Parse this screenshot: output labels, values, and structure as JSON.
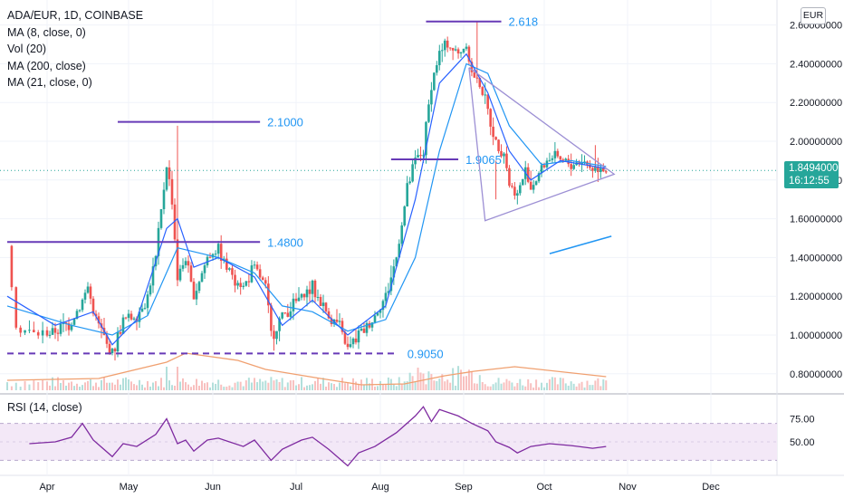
{
  "legend": {
    "symbol": "ADA/EUR, 1D, COINBASE",
    "ma8": "MA (8, close, 0)",
    "vol": "Vol (20)",
    "ma200": "MA (200, close)",
    "ma21": "MA (21, close, 0)"
  },
  "currency_label": "EUR",
  "last_price": "1.84940000",
  "countdown": "16:12:55",
  "rsi_legend": "RSI (14, close)",
  "colors": {
    "up": "#26a69a",
    "down": "#ef5350",
    "ma_fast": "#2962ff",
    "ma_slow": "#2196f3",
    "volume_ma": "#f0a070",
    "rsi_line": "#7e2aa0",
    "rsi_band": "#f3e8f7",
    "level_line": "#673ab7",
    "level_text": "#2196f3",
    "triangle": "#9c8fd4",
    "badge": "#26a69a"
  },
  "chart_data": [
    {
      "type": "candlestick",
      "x_tick_labels": [
        "Apr",
        "May",
        "Jun",
        "Jul",
        "Aug",
        "Sep",
        "Oct",
        "Nov",
        "Dec"
      ],
      "y_tick_labels": [
        "2.60000000",
        "2.40000000",
        "2.20000000",
        "2.00000000",
        "1.80000000",
        "1.60000000",
        "1.40000000",
        "1.20000000",
        "1.00000000",
        "0.80000000"
      ],
      "ylim": [
        0.75,
        2.65
      ],
      "last_price": 1.8494,
      "levels": [
        {
          "label": "2.618",
          "value": 2.618
        },
        {
          "label": "2.1000",
          "value": 2.1
        },
        {
          "label": "1.9065",
          "value": 1.9065
        },
        {
          "label": "1.4800",
          "value": 1.48
        },
        {
          "label": "0.9050",
          "value": 0.905
        }
      ],
      "price_path": [
        [
          "2021-03-23",
          1.46
        ],
        [
          "2021-03-25",
          1.05
        ],
        [
          "2021-03-29",
          1.0
        ],
        [
          "2021-04-04",
          1.02
        ],
        [
          "2021-04-10",
          1.07
        ],
        [
          "2021-04-14",
          1.18
        ],
        [
          "2021-04-16",
          1.25
        ],
        [
          "2021-04-18",
          1.12
        ],
        [
          "2021-04-23",
          0.95
        ],
        [
          "2021-04-25",
          0.9
        ],
        [
          "2021-04-29",
          1.08
        ],
        [
          "2021-05-04",
          1.1
        ],
        [
          "2021-05-08",
          1.2
        ],
        [
          "2021-05-11",
          1.4
        ],
        [
          "2021-05-15",
          1.88
        ],
        [
          "2021-05-17",
          1.7
        ],
        [
          "2021-05-19",
          1.3
        ],
        [
          "2021-05-22",
          1.4
        ],
        [
          "2021-05-25",
          1.2
        ],
        [
          "2021-05-30",
          1.4
        ],
        [
          "2021-06-03",
          1.45
        ],
        [
          "2021-06-06",
          1.35
        ],
        [
          "2021-06-12",
          1.25
        ],
        [
          "2021-06-16",
          1.35
        ],
        [
          "2021-06-20",
          1.25
        ],
        [
          "2021-06-22",
          1.0
        ],
        [
          "2021-06-26",
          1.1
        ],
        [
          "2021-07-03",
          1.2
        ],
        [
          "2021-07-07",
          1.24
        ],
        [
          "2021-07-13",
          1.1
        ],
        [
          "2021-07-17",
          1.05
        ],
        [
          "2021-07-20",
          0.92
        ],
        [
          "2021-07-24",
          1.0
        ],
        [
          "2021-07-30",
          1.1
        ],
        [
          "2021-08-03",
          1.2
        ],
        [
          "2021-08-07",
          1.4
        ],
        [
          "2021-08-11",
          1.75
        ],
        [
          "2021-08-14",
          1.9
        ],
        [
          "2021-08-17",
          1.95
        ],
        [
          "2021-08-20",
          2.3
        ],
        [
          "2021-08-23",
          2.45
        ],
        [
          "2021-08-26",
          2.5
        ],
        [
          "2021-08-30",
          2.45
        ],
        [
          "2021-09-02",
          2.5
        ],
        [
          "2021-09-04",
          2.35
        ],
        [
          "2021-09-07",
          2.3
        ],
        [
          "2021-09-10",
          2.15
        ],
        [
          "2021-09-13",
          2.0
        ],
        [
          "2021-09-16",
          1.95
        ],
        [
          "2021-09-18",
          1.78
        ],
        [
          "2021-09-21",
          1.72
        ],
        [
          "2021-09-24",
          1.85
        ],
        [
          "2021-09-26",
          1.76
        ],
        [
          "2021-09-30",
          1.86
        ],
        [
          "2021-10-03",
          1.92
        ],
        [
          "2021-10-07",
          1.9
        ],
        [
          "2021-10-11",
          1.88
        ],
        [
          "2021-10-15",
          1.9
        ],
        [
          "2021-10-19",
          1.86
        ],
        [
          "2021-10-22",
          1.88
        ],
        [
          "2021-10-24",
          1.85
        ]
      ],
      "ma_fast_path": [
        [
          "2021-03-23",
          1.2
        ],
        [
          "2021-04-04",
          1.05
        ],
        [
          "2021-04-18",
          1.12
        ],
        [
          "2021-04-25",
          0.95
        ],
        [
          "2021-05-04",
          1.08
        ],
        [
          "2021-05-15",
          1.55
        ],
        [
          "2021-05-19",
          1.6
        ],
        [
          "2021-05-25",
          1.35
        ],
        [
          "2021-06-03",
          1.4
        ],
        [
          "2021-06-16",
          1.3
        ],
        [
          "2021-06-26",
          1.05
        ],
        [
          "2021-07-07",
          1.18
        ],
        [
          "2021-07-20",
          1.0
        ],
        [
          "2021-08-03",
          1.15
        ],
        [
          "2021-08-14",
          1.7
        ],
        [
          "2021-08-23",
          2.3
        ],
        [
          "2021-09-02",
          2.45
        ],
        [
          "2021-09-10",
          2.25
        ],
        [
          "2021-09-18",
          1.95
        ],
        [
          "2021-09-26",
          1.8
        ],
        [
          "2021-10-07",
          1.9
        ],
        [
          "2021-10-24",
          1.86
        ]
      ],
      "ma_slow_path": [
        [
          "2021-03-23",
          1.15
        ],
        [
          "2021-04-10",
          1.05
        ],
        [
          "2021-04-25",
          1.0
        ],
        [
          "2021-05-08",
          1.1
        ],
        [
          "2021-05-19",
          1.45
        ],
        [
          "2021-06-03",
          1.4
        ],
        [
          "2021-06-16",
          1.32
        ],
        [
          "2021-06-26",
          1.15
        ],
        [
          "2021-07-07",
          1.12
        ],
        [
          "2021-07-20",
          1.02
        ],
        [
          "2021-08-03",
          1.08
        ],
        [
          "2021-08-14",
          1.4
        ],
        [
          "2021-08-23",
          1.95
        ],
        [
          "2021-09-02",
          2.4
        ],
        [
          "2021-09-10",
          2.35
        ],
        [
          "2021-09-18",
          2.08
        ],
        [
          "2021-09-30",
          1.88
        ],
        [
          "2021-10-11",
          1.9
        ],
        [
          "2021-10-24",
          1.87
        ]
      ]
    },
    {
      "type": "area",
      "name": "RSI (14, close)",
      "y_tick_labels": [
        "75.00",
        "50.00"
      ],
      "ylim": [
        20,
        90
      ],
      "band": [
        30,
        70
      ],
      "rsi_path": [
        [
          "2021-03-28",
          48
        ],
        [
          "2021-04-04",
          50
        ],
        [
          "2021-04-10",
          55
        ],
        [
          "2021-04-14",
          70
        ],
        [
          "2021-04-18",
          52
        ],
        [
          "2021-04-25",
          34
        ],
        [
          "2021-04-29",
          48
        ],
        [
          "2021-05-04",
          45
        ],
        [
          "2021-05-11",
          58
        ],
        [
          "2021-05-15",
          75
        ],
        [
          "2021-05-19",
          48
        ],
        [
          "2021-05-22",
          52
        ],
        [
          "2021-05-25",
          40
        ],
        [
          "2021-05-30",
          52
        ],
        [
          "2021-06-03",
          54
        ],
        [
          "2021-06-12",
          45
        ],
        [
          "2021-06-16",
          52
        ],
        [
          "2021-06-22",
          30
        ],
        [
          "2021-06-26",
          42
        ],
        [
          "2021-07-03",
          52
        ],
        [
          "2021-07-07",
          55
        ],
        [
          "2021-07-13",
          42
        ],
        [
          "2021-07-20",
          24
        ],
        [
          "2021-07-24",
          38
        ],
        [
          "2021-07-30",
          45
        ],
        [
          "2021-08-07",
          60
        ],
        [
          "2021-08-14",
          78
        ],
        [
          "2021-08-17",
          88
        ],
        [
          "2021-08-20",
          72
        ],
        [
          "2021-08-23",
          85
        ],
        [
          "2021-08-30",
          78
        ],
        [
          "2021-09-04",
          70
        ],
        [
          "2021-09-10",
          62
        ],
        [
          "2021-09-13",
          50
        ],
        [
          "2021-09-18",
          44
        ],
        [
          "2021-09-21",
          38
        ],
        [
          "2021-09-26",
          45
        ],
        [
          "2021-10-03",
          48
        ],
        [
          "2021-10-11",
          46
        ],
        [
          "2021-10-19",
          43
        ],
        [
          "2021-10-24",
          45
        ]
      ]
    }
  ]
}
